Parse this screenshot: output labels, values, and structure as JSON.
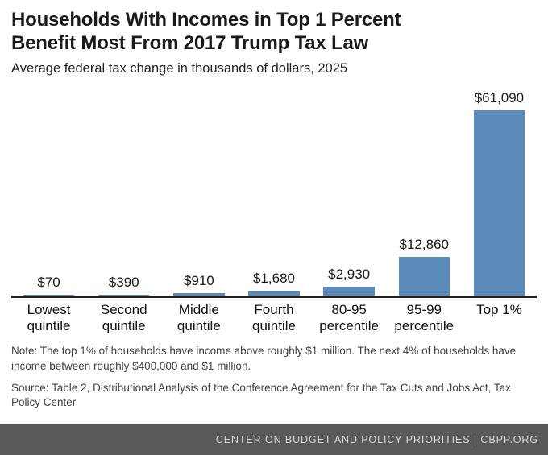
{
  "header": {
    "title_line1": "Households With Incomes in Top 1 Percent",
    "title_line2": "Benefit Most From 2017 Trump Tax Law",
    "subtitle": "Average federal tax change in thousands of dollars, 2025"
  },
  "chart_data": {
    "type": "bar",
    "title": "Households With Incomes in Top 1 Percent Benefit Most From 2017 Trump Tax Law",
    "subtitle": "Average federal tax change in thousands of dollars, 2025",
    "categories": [
      "Lowest quintile",
      "Second quintile",
      "Middle quintile",
      "Fourth quintile",
      "80-95 percentile",
      "95-99 percentile",
      "Top 1%"
    ],
    "category_lines": [
      [
        "Lowest",
        "quintile"
      ],
      [
        "Second",
        "quintile"
      ],
      [
        "Middle",
        "quintile"
      ],
      [
        "Fourth",
        "quintile"
      ],
      [
        "80-95",
        "percentile"
      ],
      [
        "95-99",
        "percentile"
      ],
      [
        "Top 1%"
      ]
    ],
    "values": [
      70,
      390,
      910,
      1680,
      2930,
      12860,
      61090
    ],
    "value_labels": [
      "$70",
      "$390",
      "$910",
      "$1,680",
      "$2,930",
      "$12,860",
      "$61,090"
    ],
    "bar_color": "#5b8bb9",
    "ylim": [
      0,
      61090
    ],
    "grid": false,
    "legend": "none",
    "xlabel": "",
    "ylabel": ""
  },
  "note": "Note: The top 1% of households have income above roughly $1 million. The next 4% of households have income between roughly $400,000 and $1 million.",
  "source": "Source: Table 2, Distributional Analysis of the Conference Agreement for the Tax Cuts and Jobs Act, Tax Policy Center",
  "footer": {
    "text": "CENTER ON BUDGET AND POLICY PRIORITIES | CBPP.ORG"
  }
}
